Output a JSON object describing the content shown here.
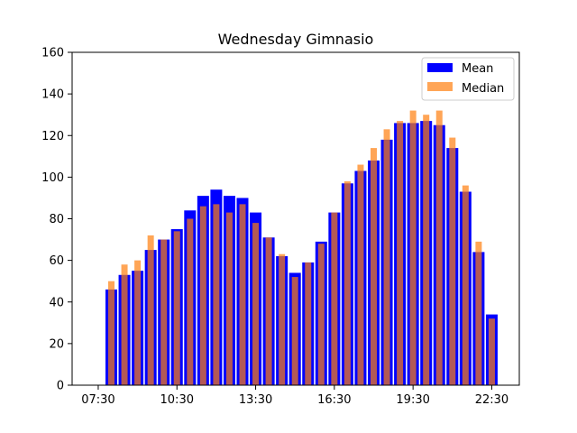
{
  "chart_data": {
    "type": "bar",
    "title": "Wednesday Gimnasio",
    "xlabel": "",
    "ylabel": "",
    "ylim": [
      0,
      160
    ],
    "yticks": [
      0,
      20,
      40,
      60,
      80,
      100,
      120,
      140,
      160
    ],
    "xtick_labels": [
      "07:30",
      "10:30",
      "13:30",
      "16:30",
      "19:30",
      "22:30"
    ],
    "categories": [
      "08:00",
      "08:30",
      "09:00",
      "09:30",
      "10:00",
      "10:30",
      "11:00",
      "11:30",
      "12:00",
      "12:30",
      "13:00",
      "13:30",
      "14:00",
      "14:30",
      "15:00",
      "15:30",
      "16:00",
      "16:30",
      "17:00",
      "17:30",
      "18:00",
      "18:30",
      "19:00",
      "19:30",
      "20:00",
      "20:30",
      "21:00",
      "21:30",
      "22:00",
      "22:30"
    ],
    "series": [
      {
        "name": "Mean",
        "color": "#0000ff",
        "values": [
          46,
          53,
          55,
          65,
          70,
          75,
          84,
          91,
          94,
          91,
          90,
          83,
          71,
          62,
          54,
          59,
          69,
          83,
          97,
          103,
          108,
          118,
          126,
          126,
          127,
          125,
          114,
          93,
          64,
          34
        ]
      },
      {
        "name": "Median",
        "color": "#ff7f0e",
        "opacity": 0.7,
        "values": [
          50,
          58,
          60,
          72,
          70,
          74,
          80,
          86,
          87,
          83,
          87,
          78,
          71,
          63,
          52,
          59,
          68,
          83,
          98,
          106,
          114,
          123,
          127,
          132,
          130,
          132,
          119,
          96,
          69,
          32
        ]
      }
    ],
    "legend": "top-right",
    "grid": false
  }
}
